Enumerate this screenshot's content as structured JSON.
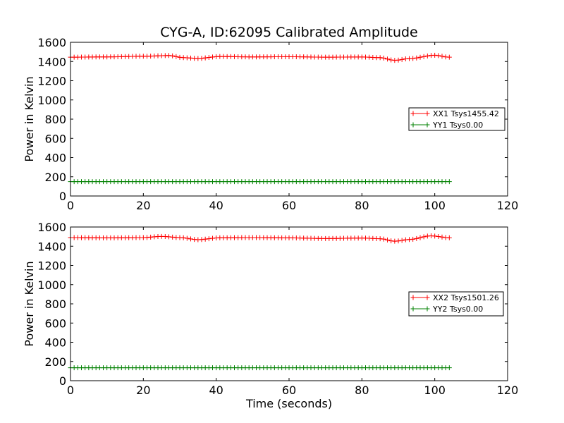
{
  "chart_data": [
    {
      "type": "line",
      "title": "CYG-A, ID:62095 Calibrated Amplitude",
      "xlabel": "",
      "ylabel": "Power in Kelvin",
      "xlim": [
        0,
        120
      ],
      "ylim": [
        0,
        1600
      ],
      "x_ticks": [
        "0",
        "20",
        "40",
        "60",
        "80",
        "100",
        "120"
      ],
      "y_ticks": [
        "0",
        "200",
        "400",
        "600",
        "800",
        "1000",
        "1200",
        "1400",
        "1600"
      ],
      "legend_position": "right",
      "marker": "+",
      "x_range": [
        0,
        104
      ],
      "x_step": 1,
      "series": [
        {
          "name": "XX1 Tsys1455.42",
          "color": "#ff0000",
          "anchors": [
            [
              0,
              1445
            ],
            [
              10,
              1448
            ],
            [
              20,
              1455
            ],
            [
              27,
              1462
            ],
            [
              31,
              1440
            ],
            [
              35,
              1432
            ],
            [
              41,
              1452
            ],
            [
              50,
              1448
            ],
            [
              60,
              1450
            ],
            [
              70,
              1445
            ],
            [
              80,
              1447
            ],
            [
              85,
              1440
            ],
            [
              89,
              1412
            ],
            [
              93,
              1430
            ],
            [
              100,
              1465
            ],
            [
              104,
              1445
            ]
          ]
        },
        {
          "name": "YY1 Tsys0.00",
          "color": "#008000",
          "anchors": [
            [
              0,
              150
            ],
            [
              104,
              150
            ]
          ]
        }
      ]
    },
    {
      "type": "line",
      "title": "",
      "xlabel": "Time (seconds)",
      "ylabel": "Power in Kelvin",
      "xlim": [
        0,
        120
      ],
      "ylim": [
        0,
        1600
      ],
      "x_ticks": [
        "0",
        "20",
        "40",
        "60",
        "80",
        "100",
        "120"
      ],
      "y_ticks": [
        "0",
        "200",
        "400",
        "600",
        "800",
        "1000",
        "1200",
        "1400",
        "1600"
      ],
      "legend_position": "right",
      "marker": "+",
      "x_range": [
        0,
        104
      ],
      "x_step": 1,
      "series": [
        {
          "name": "XX2 Tsys1501.26",
          "color": "#ff0000",
          "anchors": [
            [
              0,
              1490
            ],
            [
              10,
              1487
            ],
            [
              20,
              1490
            ],
            [
              25,
              1502
            ],
            [
              30,
              1490
            ],
            [
              35,
              1468
            ],
            [
              41,
              1488
            ],
            [
              50,
              1490
            ],
            [
              60,
              1487
            ],
            [
              70,
              1480
            ],
            [
              80,
              1485
            ],
            [
              85,
              1478
            ],
            [
              89,
              1452
            ],
            [
              93,
              1470
            ],
            [
              99,
              1508
            ],
            [
              104,
              1488
            ]
          ]
        },
        {
          "name": "YY2 Tsys0.00",
          "color": "#008000",
          "anchors": [
            [
              0,
              135
            ],
            [
              104,
              135
            ]
          ]
        }
      ]
    }
  ]
}
